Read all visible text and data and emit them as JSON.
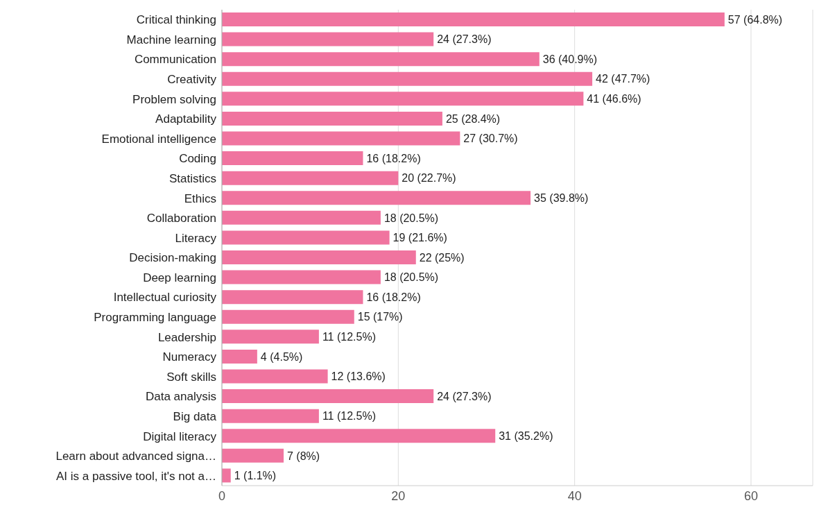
{
  "chart_data": {
    "type": "bar",
    "orientation": "horizontal",
    "categories": [
      "Critical thinking",
      "Machine learning",
      "Communication",
      "Creativity",
      "Problem solving",
      "Adaptability",
      "Emotional intelligence",
      "Coding",
      "Statistics",
      "Ethics",
      "Collaboration",
      "Literacy",
      "Decision-making",
      "Deep learning",
      "Intellectual curiosity",
      "Programming language",
      "Leadership",
      "Numeracy",
      "Soft skills",
      "Data analysis",
      "Big data",
      "Digital literacy",
      "Learn about advanced signa…",
      "AI is a passive tool, it's not a…"
    ],
    "values": [
      57,
      24,
      36,
      42,
      41,
      25,
      27,
      16,
      20,
      35,
      18,
      19,
      22,
      18,
      16,
      15,
      11,
      4,
      12,
      24,
      11,
      31,
      7,
      1
    ],
    "value_labels": [
      "57 (64.8%)",
      "24 (27.3%)",
      "36 (40.9%)",
      "42 (47.7%)",
      "41 (46.6%)",
      "25 (28.4%)",
      "27 (30.7%)",
      "16 (18.2%)",
      "20 (22.7%)",
      "35 (39.8%)",
      "18 (20.5%)",
      "19 (21.6%)",
      "22 (25%)",
      "18 (20.5%)",
      "16 (18.2%)",
      "15 (17%)",
      "11 (12.5%)",
      "4 (4.5%)",
      "12 (13.6%)",
      "24 (27.3%)",
      "11 (12.5%)",
      "31 (35.2%)",
      "7 (8%)",
      "1 (1.1%)"
    ],
    "color": "#f0749f",
    "xlim": [
      0,
      67
    ],
    "xticks": [
      0,
      20,
      40,
      60
    ],
    "grid": "x"
  }
}
